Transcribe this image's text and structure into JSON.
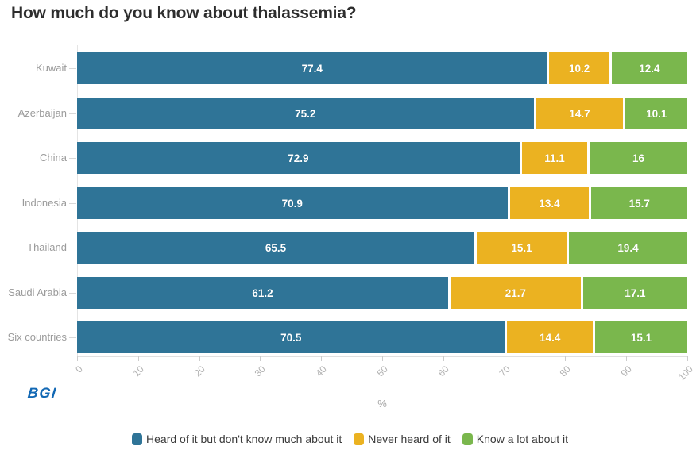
{
  "title": "How much do you know about thalassemia?",
  "logo": {
    "text": "BGI",
    "color": "#1268b4"
  },
  "chart_data": {
    "type": "bar",
    "orientation": "horizontal",
    "stacked": true,
    "title": "How much do you know about thalassemia?",
    "categories": [
      "Kuwait",
      "Azerbaijan",
      "China",
      "Indonesia",
      "Thailand",
      "Saudi Arabia",
      "Six countries"
    ],
    "series": [
      {
        "name": "Heard of it but don't know much about it",
        "color": "#2f7497",
        "values": [
          77.4,
          75.2,
          72.9,
          70.9,
          65.5,
          61.2,
          70.5
        ]
      },
      {
        "name": "Never heard of it",
        "color": "#ebb221",
        "values": [
          10.2,
          14.7,
          11.1,
          13.4,
          15.1,
          21.7,
          14.4
        ]
      },
      {
        "name": "Know a lot about it",
        "color": "#7ab74d",
        "values": [
          12.4,
          10.1,
          16,
          15.7,
          19.4,
          17.1,
          15.1
        ]
      }
    ],
    "xlabel": "%",
    "ylabel": "",
    "xlim": [
      0,
      100
    ],
    "x_ticks": [
      0,
      10,
      20,
      30,
      40,
      50,
      60,
      70,
      80,
      90,
      100
    ],
    "grid": false,
    "legend_position": "bottom",
    "value_labels": "inside-center"
  }
}
